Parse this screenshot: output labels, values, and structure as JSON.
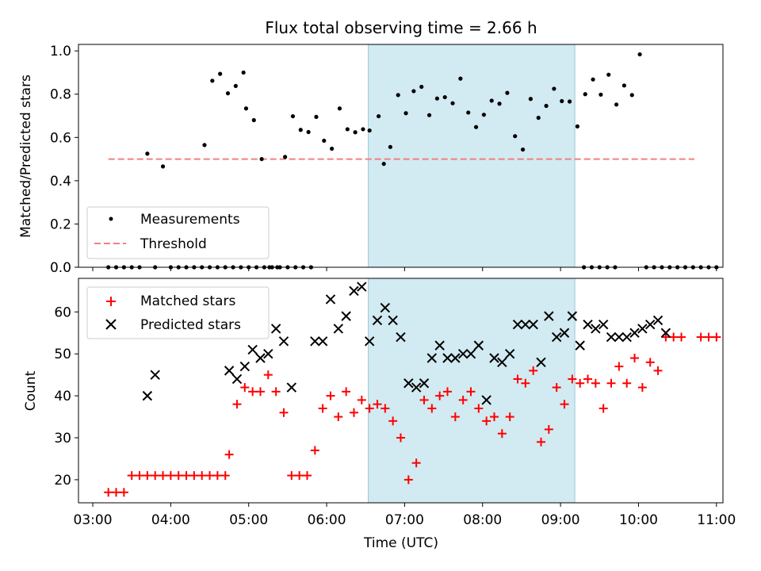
{
  "chart_data": [
    {
      "type": "scatter",
      "title": "Flux total observing time = 2.66 h",
      "xlabel": "",
      "ylabel": "Matched/Predicted stars",
      "xlim": [
        "02:49",
        "11:05"
      ],
      "ylim": [
        0,
        1.03
      ],
      "yticks": [
        0.0,
        0.2,
        0.4,
        0.6,
        0.8,
        1.0
      ],
      "ytick_labels": [
        "0.0",
        "0.2",
        "0.4",
        "0.6",
        "0.8",
        "1.0"
      ],
      "x_tick_labels_shown": false,
      "shaded_interval": {
        "x": [
          "06:32",
          "09:11"
        ],
        "color": "#add8e6"
      },
      "legend": {
        "placement": "lower-left",
        "entries": [
          "Measurements",
          "Threshold"
        ]
      },
      "series": [
        {
          "name": "Measurements",
          "marker": "dot",
          "color": "#000000",
          "points": [
            [
              "03:12",
              0.0
            ],
            [
              "03:18",
              0.0
            ],
            [
              "03:24",
              0.0
            ],
            [
              "03:30",
              0.0
            ],
            [
              "03:36",
              0.0
            ],
            [
              "03:42",
              0.525
            ],
            [
              "03:48",
              0.0
            ],
            [
              "03:54",
              0.466
            ],
            [
              "04:00",
              0.0
            ],
            [
              "04:06",
              0.0
            ],
            [
              "04:12",
              0.0
            ],
            [
              "04:18",
              0.0
            ],
            [
              "04:24",
              0.0
            ],
            [
              "04:30",
              0.0
            ],
            [
              "04:36",
              0.0
            ],
            [
              "04:42",
              0.0
            ],
            [
              "04:48",
              0.0
            ],
            [
              "04:54",
              0.0
            ],
            [
              "05:00",
              0.0
            ],
            [
              "05:06",
              0.0
            ],
            [
              "05:12",
              0.0
            ],
            [
              "05:18",
              0.0
            ],
            [
              "05:24",
              0.0
            ],
            [
              "05:30",
              0.0
            ],
            [
              "05:36",
              0.0
            ],
            [
              "05:42",
              0.0
            ],
            [
              "05:48",
              0.0
            ],
            [
              "04:26",
              0.565
            ],
            [
              "04:32",
              0.862
            ],
            [
              "04:38",
              0.894
            ],
            [
              "04:44",
              0.804
            ],
            [
              "04:50",
              0.838
            ],
            [
              "04:56",
              0.9
            ],
            [
              "04:58",
              0.734
            ],
            [
              "05:04",
              0.68
            ],
            [
              "05:10",
              0.5
            ],
            [
              "05:16",
              0.0
            ],
            [
              "05:22",
              0.0
            ],
            [
              "05:28",
              0.51
            ],
            [
              "05:34",
              0.698
            ],
            [
              "05:40",
              0.635
            ],
            [
              "05:46",
              0.625
            ],
            [
              "05:52",
              0.695
            ],
            [
              "05:58",
              0.585
            ],
            [
              "06:04",
              0.548
            ],
            [
              "06:10",
              0.734
            ],
            [
              "06:16",
              0.638
            ],
            [
              "06:22",
              0.624
            ],
            [
              "06:28",
              0.638
            ],
            [
              "06:33",
              0.632
            ],
            [
              "06:40",
              0.698
            ],
            [
              "06:44",
              0.478
            ],
            [
              "06:49",
              0.556
            ],
            [
              "06:55",
              0.796
            ],
            [
              "07:01",
              0.712
            ],
            [
              "07:07",
              0.814
            ],
            [
              "07:13",
              0.834
            ],
            [
              "07:19",
              0.703
            ],
            [
              "07:25",
              0.78
            ],
            [
              "07:31",
              0.786
            ],
            [
              "07:37",
              0.758
            ],
            [
              "07:43",
              0.872
            ],
            [
              "07:49",
              0.715
            ],
            [
              "07:55",
              0.648
            ],
            [
              "08:01",
              0.705
            ],
            [
              "08:07",
              0.77
            ],
            [
              "08:13",
              0.756
            ],
            [
              "08:19",
              0.806
            ],
            [
              "08:25",
              0.606
            ],
            [
              "08:31",
              0.544
            ],
            [
              "08:37",
              0.778
            ],
            [
              "08:43",
              0.691
            ],
            [
              "08:49",
              0.746
            ],
            [
              "08:55",
              0.825
            ],
            [
              "09:01",
              0.768
            ],
            [
              "09:07",
              0.766
            ],
            [
              "09:13",
              0.651
            ],
            [
              "09:19",
              0.8
            ],
            [
              "09:25",
              0.868
            ],
            [
              "09:31",
              0.798
            ],
            [
              "09:37",
              0.89
            ],
            [
              "09:43",
              0.752
            ],
            [
              "09:49",
              0.84
            ],
            [
              "09:55",
              0.796
            ],
            [
              "10:01",
              0.984
            ],
            [
              "09:18",
              0.0
            ],
            [
              "09:24",
              0.0
            ],
            [
              "09:30",
              0.0
            ],
            [
              "09:36",
              0.0
            ],
            [
              "09:42",
              0.0
            ],
            [
              "10:06",
              0.0
            ],
            [
              "10:12",
              0.0
            ],
            [
              "10:18",
              0.0
            ],
            [
              "10:24",
              0.0
            ],
            [
              "10:30",
              0.0
            ],
            [
              "10:36",
              0.0
            ],
            [
              "10:42",
              0.0
            ],
            [
              "10:48",
              0.0
            ],
            [
              "10:54",
              0.0
            ],
            [
              "11:00",
              0.0
            ]
          ]
        },
        {
          "name": "Threshold",
          "kind": "dashed-line",
          "color": "#f08080",
          "points": [
            [
              "03:12",
              0.5
            ],
            [
              "10:43",
              0.5
            ]
          ]
        }
      ]
    },
    {
      "type": "scatter",
      "title": "",
      "xlabel": "Time (UTC)",
      "ylabel": "Count",
      "xlim": [
        "02:49",
        "11:05"
      ],
      "ylim": [
        14.5,
        68
      ],
      "yticks": [
        20,
        30,
        40,
        50,
        60
      ],
      "ytick_labels": [
        "20",
        "30",
        "40",
        "50",
        "60"
      ],
      "xticks": [
        "03:00",
        "04:00",
        "05:00",
        "06:00",
        "07:00",
        "08:00",
        "09:00",
        "10:00",
        "11:00"
      ],
      "xtick_labels": [
        "03:00",
        "04:00",
        "05:00",
        "06:00",
        "07:00",
        "08:00",
        "09:00",
        "10:00",
        "11:00"
      ],
      "shaded_interval": {
        "x": [
          "06:32",
          "09:11"
        ],
        "color": "#add8e6"
      },
      "legend": {
        "placement": "top-left",
        "entries": [
          "Matched stars",
          "Predicted stars"
        ]
      },
      "series": [
        {
          "name": "Matched stars",
          "marker": "plus",
          "color": "#ff0000",
          "points": [
            [
              "03:12",
              17
            ],
            [
              "03:18",
              17
            ],
            [
              "03:24",
              17
            ],
            [
              "03:30",
              21
            ],
            [
              "03:36",
              21
            ],
            [
              "03:42",
              21
            ],
            [
              "03:48",
              21
            ],
            [
              "03:54",
              21
            ],
            [
              "04:00",
              21
            ],
            [
              "04:06",
              21
            ],
            [
              "04:12",
              21
            ],
            [
              "04:18",
              21
            ],
            [
              "04:24",
              21
            ],
            [
              "04:30",
              21
            ],
            [
              "04:36",
              21
            ],
            [
              "04:42",
              21
            ],
            [
              "04:45",
              26
            ],
            [
              "04:51",
              38
            ],
            [
              "04:57",
              42
            ],
            [
              "05:03",
              41
            ],
            [
              "05:09",
              41
            ],
            [
              "05:15",
              45
            ],
            [
              "05:21",
              41
            ],
            [
              "05:27",
              36
            ],
            [
              "05:33",
              21
            ],
            [
              "05:39",
              21
            ],
            [
              "05:45",
              21
            ],
            [
              "05:51",
              27
            ],
            [
              "05:57",
              37
            ],
            [
              "06:03",
              40
            ],
            [
              "06:09",
              35
            ],
            [
              "06:15",
              41
            ],
            [
              "06:21",
              36
            ],
            [
              "06:27",
              39
            ],
            [
              "06:33",
              37
            ],
            [
              "06:39",
              38
            ],
            [
              "06:45",
              37
            ],
            [
              "06:51",
              34
            ],
            [
              "06:57",
              30
            ],
            [
              "07:03",
              20
            ],
            [
              "07:09",
              24
            ],
            [
              "07:15",
              39
            ],
            [
              "07:21",
              37
            ],
            [
              "07:27",
              40
            ],
            [
              "07:33",
              41
            ],
            [
              "07:39",
              35
            ],
            [
              "07:45",
              39
            ],
            [
              "07:51",
              41
            ],
            [
              "07:57",
              37
            ],
            [
              "08:03",
              34
            ],
            [
              "08:09",
              35
            ],
            [
              "08:15",
              31
            ],
            [
              "08:21",
              35
            ],
            [
              "08:27",
              44
            ],
            [
              "08:33",
              43
            ],
            [
              "08:39",
              46
            ],
            [
              "08:45",
              29
            ],
            [
              "08:51",
              32
            ],
            [
              "08:57",
              42
            ],
            [
              "09:03",
              38
            ],
            [
              "09:09",
              44
            ],
            [
              "09:15",
              43
            ],
            [
              "09:21",
              44
            ],
            [
              "09:27",
              43
            ],
            [
              "09:33",
              37
            ],
            [
              "09:39",
              43
            ],
            [
              "09:45",
              47
            ],
            [
              "09:51",
              43
            ],
            [
              "09:57",
              49
            ],
            [
              "10:03",
              42
            ],
            [
              "10:09",
              48
            ],
            [
              "10:15",
              46
            ],
            [
              "10:21",
              54
            ],
            [
              "10:27",
              54
            ],
            [
              "10:33",
              54
            ],
            [
              "10:48",
              54
            ],
            [
              "10:54",
              54
            ],
            [
              "11:00",
              54
            ]
          ]
        },
        {
          "name": "Predicted stars",
          "marker": "x",
          "color": "#000000",
          "points": [
            [
              "03:42",
              40
            ],
            [
              "03:48",
              45
            ],
            [
              "04:45",
              46
            ],
            [
              "04:51",
              44
            ],
            [
              "04:57",
              47
            ],
            [
              "05:03",
              51
            ],
            [
              "05:09",
              49
            ],
            [
              "05:15",
              50
            ],
            [
              "05:21",
              56
            ],
            [
              "05:27",
              53
            ],
            [
              "05:33",
              42
            ],
            [
              "05:51",
              53
            ],
            [
              "05:57",
              53
            ],
            [
              "06:03",
              63
            ],
            [
              "06:09",
              56
            ],
            [
              "06:15",
              59
            ],
            [
              "06:21",
              65
            ],
            [
              "06:27",
              66
            ],
            [
              "06:33",
              53
            ],
            [
              "06:39",
              58
            ],
            [
              "06:45",
              61
            ],
            [
              "06:51",
              58
            ],
            [
              "06:57",
              54
            ],
            [
              "07:03",
              43
            ],
            [
              "07:09",
              42
            ],
            [
              "07:15",
              43
            ],
            [
              "07:21",
              49
            ],
            [
              "07:27",
              52
            ],
            [
              "07:33",
              49
            ],
            [
              "07:39",
              49
            ],
            [
              "07:45",
              50
            ],
            [
              "07:51",
              50
            ],
            [
              "07:57",
              52
            ],
            [
              "08:03",
              39
            ],
            [
              "08:09",
              49
            ],
            [
              "08:15",
              48
            ],
            [
              "08:21",
              50
            ],
            [
              "08:27",
              57
            ],
            [
              "08:33",
              57
            ],
            [
              "08:39",
              57
            ],
            [
              "08:45",
              48
            ],
            [
              "08:51",
              59
            ],
            [
              "08:57",
              54
            ],
            [
              "09:03",
              55
            ],
            [
              "09:09",
              59
            ],
            [
              "09:15",
              52
            ],
            [
              "09:21",
              57
            ],
            [
              "09:27",
              56
            ],
            [
              "09:33",
              57
            ],
            [
              "09:39",
              54
            ],
            [
              "09:45",
              54
            ],
            [
              "09:51",
              54
            ],
            [
              "09:57",
              55
            ],
            [
              "10:03",
              56
            ],
            [
              "10:09",
              57
            ],
            [
              "10:15",
              58
            ],
            [
              "10:21",
              55
            ]
          ]
        }
      ]
    }
  ]
}
